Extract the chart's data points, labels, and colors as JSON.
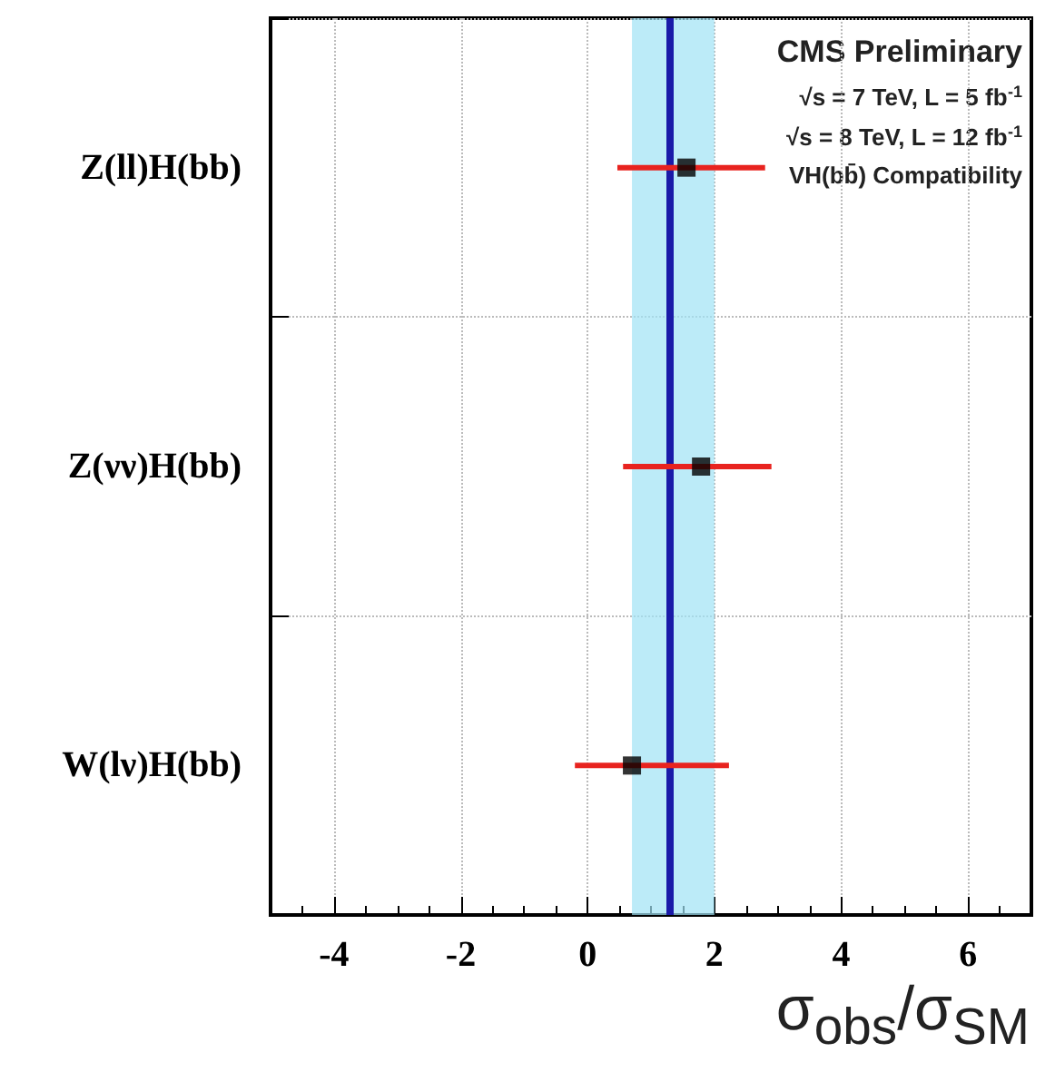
{
  "chart_data": {
    "type": "scatter",
    "orientation": "horizontal",
    "categories": [
      "Z(ll)H(bb)",
      "Z(νν)H(bb)",
      "W(lν)H(bb)"
    ],
    "values": [
      1.56,
      1.79,
      0.7
    ],
    "errors": [
      [
        0.47,
        2.8
      ],
      [
        0.56,
        2.9
      ],
      [
        -0.2,
        2.23
      ]
    ],
    "color": "#000000",
    "marker": "square",
    "xlabel": "σ$_{obs}$/σ$_{SM}$",
    "xlim": [
      -5,
      7
    ],
    "xticks": [
      -4,
      -2,
      0,
      2,
      4,
      6
    ],
    "grid": true,
    "ref_lines": [
      {
        "axis": "x",
        "value": 1.3,
        "color": "#1a1aa8"
      }
    ],
    "bands": [
      {
        "axis": "x",
        "from": 0.7,
        "to": 2.0,
        "color": "#9fe3f5"
      }
    ],
    "annotations": [
      "CMS Preliminary",
      "√s = 7 TeV, L = 5 fb$^{-1}$",
      "√s = 8 TeV, L = 12 fb$^{-1}$",
      "VH(bb̄) Compatibility"
    ]
  }
}
